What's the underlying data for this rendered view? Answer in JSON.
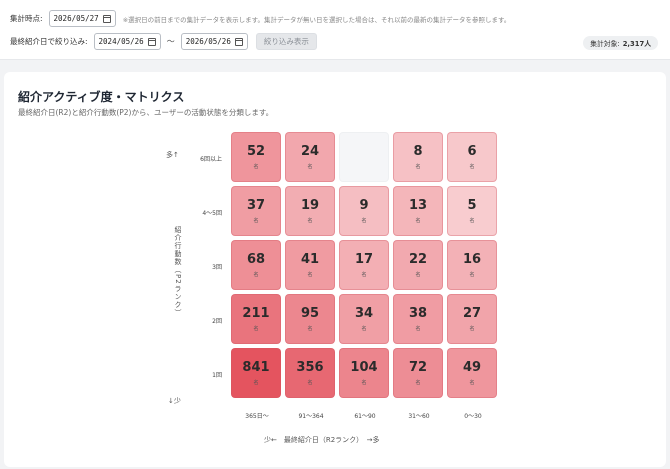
{
  "filters": {
    "as_of_label": "集計時点:",
    "as_of_date": "2026/05/27",
    "as_of_note": "※選択日の前日までの集計データを表示します。集計データが無い日を選択した場合は、それ以前の最新の集計データを参照します。",
    "range_label": "最終紹介日で絞り込み:",
    "range_start": "2024/05/26",
    "range_sep": "〜",
    "range_end": "2026/05/26",
    "apply_label": "絞り込み表示",
    "total_label": "集計対象:",
    "total_value": "2,317人"
  },
  "matrix": {
    "title": "紹介アクティブ度・マトリクス",
    "subtitle": "最終紹介日(R2)と紹介行動数(P2)から、ユーザーの活動状態を分類します。",
    "y_axis_label": "紹介行動数（P2ランク）",
    "y_high": "多↑",
    "y_low": "↓少",
    "x_axis_label": "少←　最終紹介日（R2ランク）　→多",
    "row_labels": [
      "6回以上",
      "4〜5回",
      "3回",
      "2回",
      "1回"
    ],
    "col_labels": [
      "365日〜",
      "91〜364",
      "61〜90",
      "31〜60",
      "0〜30"
    ],
    "unit": "名",
    "cells": [
      [
        "52",
        "24",
        "",
        "8",
        "6"
      ],
      [
        "37",
        "19",
        "9",
        "13",
        "5"
      ],
      [
        "68",
        "41",
        "17",
        "22",
        "16"
      ],
      [
        "211",
        "95",
        "34",
        "38",
        "27"
      ],
      [
        "841",
        "356",
        "104",
        "72",
        "49"
      ]
    ],
    "color_scale": {
      "low": "#fbe1e3",
      "high": "#e4545f"
    }
  }
}
